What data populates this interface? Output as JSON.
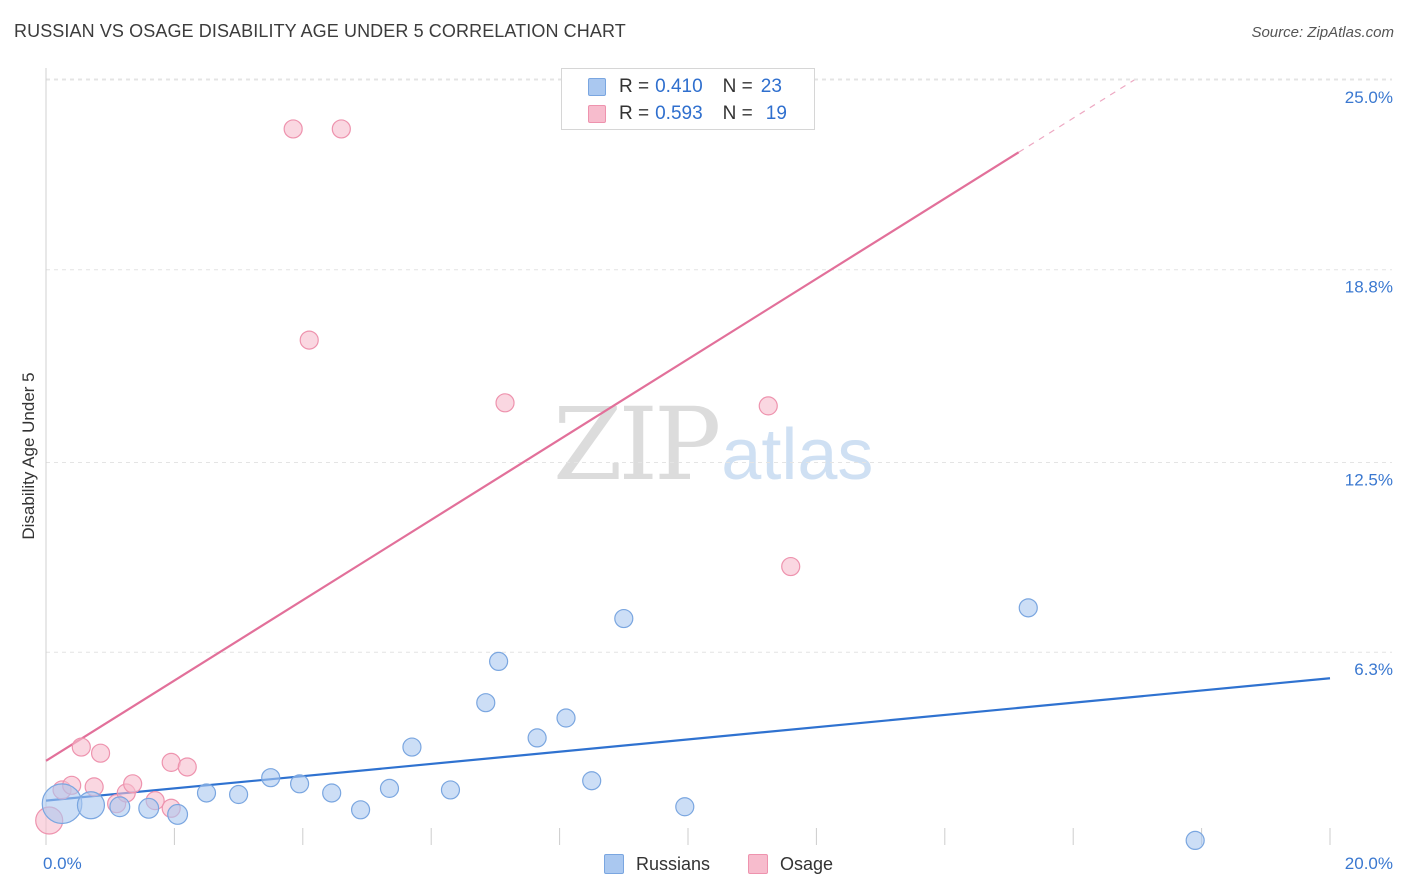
{
  "title": "RUSSIAN VS OSAGE DISABILITY AGE UNDER 5 CORRELATION CHART",
  "source": "Source: ZipAtlas.com",
  "watermark": {
    "zip": "ZIP",
    "atlas": "atlas"
  },
  "colors": {
    "blue_fill": "#aac8f0",
    "blue_stroke": "#7aa6e0",
    "blue_line": "#2f72d0",
    "pink_fill": "#f7bccd",
    "pink_stroke": "#ee93ae",
    "pink_line": "#e2709a",
    "tick_label": "#3a78d0",
    "grid": "#e4e4e4"
  },
  "legend_top": [
    {
      "r_label": "R =",
      "r_value": "0.410",
      "n_label": "N =",
      "n_value": "23",
      "swatch": "blue"
    },
    {
      "r_label": "R =",
      "r_value": "0.593",
      "n_label": "N =",
      "n_value": "19",
      "swatch": "pink"
    }
  ],
  "legend_bottom": [
    {
      "label": "Russians",
      "swatch": "blue"
    },
    {
      "label": "Osage",
      "swatch": "pink"
    }
  ],
  "chart_data": {
    "type": "scatter",
    "title": "RUSSIAN VS OSAGE DISABILITY AGE UNDER 5 CORRELATION CHART",
    "xlabel": "",
    "ylabel": "Disability Age Under 5",
    "xlim": [
      0,
      20
    ],
    "ylim": [
      0,
      25.5
    ],
    "x_tick_labels": [
      {
        "value": 0,
        "label": "0.0%"
      },
      {
        "value": 20,
        "label": "20.0%"
      }
    ],
    "y_tick_labels": [
      {
        "value": 6.3,
        "label": "6.3%"
      },
      {
        "value": 12.5,
        "label": "12.5%"
      },
      {
        "value": 18.8,
        "label": "18.8%"
      },
      {
        "value": 25.0,
        "label": "25.0%"
      }
    ],
    "x_minor_ticks": [
      0,
      2,
      4,
      6,
      8,
      10,
      12,
      14,
      16,
      18,
      20
    ],
    "series": [
      {
        "name": "Russians",
        "color": "blue",
        "r": 0.41,
        "n": 23,
        "points": [
          {
            "x": 0.25,
            "y": 1.35,
            "size": 2.2
          },
          {
            "x": 0.7,
            "y": 1.3,
            "size": 1.5
          },
          {
            "x": 1.15,
            "y": 1.25,
            "size": 1.1
          },
          {
            "x": 1.6,
            "y": 1.2,
            "size": 1.1
          },
          {
            "x": 2.05,
            "y": 1.0,
            "size": 1.1
          },
          {
            "x": 2.5,
            "y": 1.7,
            "size": 1
          },
          {
            "x": 3.0,
            "y": 1.65,
            "size": 1
          },
          {
            "x": 3.5,
            "y": 2.2,
            "size": 1
          },
          {
            "x": 3.95,
            "y": 2.0,
            "size": 1
          },
          {
            "x": 4.45,
            "y": 1.7,
            "size": 1
          },
          {
            "x": 4.9,
            "y": 1.15,
            "size": 1
          },
          {
            "x": 5.35,
            "y": 1.85,
            "size": 1
          },
          {
            "x": 5.7,
            "y": 3.2,
            "size": 1
          },
          {
            "x": 6.3,
            "y": 1.8,
            "size": 1
          },
          {
            "x": 6.85,
            "y": 4.65,
            "size": 1
          },
          {
            "x": 7.05,
            "y": 6.0,
            "size": 1
          },
          {
            "x": 7.65,
            "y": 3.5,
            "size": 1
          },
          {
            "x": 8.1,
            "y": 4.15,
            "size": 1
          },
          {
            "x": 8.5,
            "y": 2.1,
            "size": 1
          },
          {
            "x": 9.0,
            "y": 7.4,
            "size": 1
          },
          {
            "x": 9.95,
            "y": 1.25,
            "size": 1
          },
          {
            "x": 15.3,
            "y": 7.75,
            "size": 1
          },
          {
            "x": 17.9,
            "y": 0.15,
            "size": 1
          }
        ],
        "trend": {
          "x_start": 0,
          "y_start": 1.45,
          "x_end": 20,
          "y_end": 5.45,
          "dashed_after_x": null
        }
      },
      {
        "name": "Osage",
        "color": "pink",
        "r": 0.593,
        "n": 19,
        "points": [
          {
            "x": 0.05,
            "y": 0.8,
            "size": 1.5
          },
          {
            "x": 0.25,
            "y": 1.8,
            "size": 1
          },
          {
            "x": 0.4,
            "y": 1.95,
            "size": 1
          },
          {
            "x": 0.55,
            "y": 3.2,
            "size": 1
          },
          {
            "x": 0.75,
            "y": 1.9,
            "size": 1
          },
          {
            "x": 0.85,
            "y": 3.0,
            "size": 1
          },
          {
            "x": 1.1,
            "y": 1.35,
            "size": 1
          },
          {
            "x": 1.25,
            "y": 1.7,
            "size": 1
          },
          {
            "x": 1.35,
            "y": 2.0,
            "size": 1
          },
          {
            "x": 1.7,
            "y": 1.45,
            "size": 1
          },
          {
            "x": 1.95,
            "y": 1.2,
            "size": 1
          },
          {
            "x": 1.95,
            "y": 2.7,
            "size": 1
          },
          {
            "x": 2.2,
            "y": 2.55,
            "size": 1
          },
          {
            "x": 3.85,
            "y": 23.4,
            "size": 1
          },
          {
            "x": 4.6,
            "y": 23.4,
            "size": 1
          },
          {
            "x": 4.1,
            "y": 16.5,
            "size": 1
          },
          {
            "x": 7.15,
            "y": 14.45,
            "size": 1
          },
          {
            "x": 11.25,
            "y": 14.35,
            "size": 1
          },
          {
            "x": 11.6,
            "y": 9.1,
            "size": 1
          }
        ],
        "trend": {
          "x_start": 0,
          "y_start": 2.75,
          "x_end": 16.95,
          "y_end": 25.0,
          "dashed_after_x": 15.15
        }
      }
    ]
  }
}
